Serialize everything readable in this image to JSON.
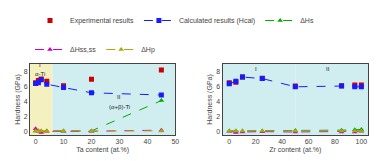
{
  "chart_data": [
    {
      "type": "line",
      "xlabel": "Ta content (at.%)",
      "ylabel": "Hardness (GPa)",
      "x": [
        0,
        1,
        2,
        4,
        10,
        20,
        45
      ],
      "xlim": [
        -2,
        50
      ],
      "ylim": [
        -0.5,
        9.0
      ],
      "xticks": [
        0,
        10,
        20,
        30,
        40,
        50
      ],
      "yticks": [
        0,
        2,
        4,
        6,
        8
      ],
      "grid": false,
      "legend": "top",
      "series": [
        {
          "name": "Experimental results",
          "type": "scatter",
          "color": "#cc0000",
          "marker": "square",
          "values": [
            6.5,
            6.8,
            7.0,
            6.7,
            6.1,
            6.95,
            8.2
          ]
        },
        {
          "name": "Calculated results (Hcal)",
          "type": "line",
          "color": "#1a1aff",
          "marker": "square",
          "line_style": "dashed",
          "values": [
            6.4,
            6.5,
            6.9,
            6.3,
            5.85,
            5.15,
            4.85
          ]
        },
        {
          "name": "ΔHs",
          "type": "line",
          "color": "#00aa00",
          "marker": "triangle-up",
          "line_style": "dashed",
          "values": [
            0.05,
            0.05,
            0.05,
            0.05,
            0.05,
            0.05,
            4.1
          ]
        },
        {
          "name": "ΔHss,ss",
          "type": "line",
          "color": "#cc00cc",
          "marker": "triangle-up",
          "line_style": "dashed",
          "values": [
            0.35,
            0.05,
            -0.15,
            0.0,
            0.0,
            0.0,
            0.15
          ]
        },
        {
          "name": "ΔHp",
          "type": "line",
          "color": "#aaaa00",
          "marker": "triangle-up",
          "line_style": "dashed",
          "values": [
            0.05,
            0.05,
            0.05,
            0.05,
            0.05,
            0.05,
            0.05
          ]
        }
      ],
      "regions": [
        {
          "x": [
            -2,
            6
          ],
          "color": "#f5f0c0"
        },
        {
          "x": [
            6,
            50
          ],
          "color": "#d0eef0"
        }
      ],
      "annotations": [
        {
          "text": "I",
          "x": 1.5,
          "y": 8.3
        },
        {
          "text": "α-Ti",
          "x": 1.5,
          "y": 7.65
        },
        {
          "text": "II",
          "x": 30,
          "y": 4.0
        },
        {
          "text": "(α+β)-Ti",
          "x": 30,
          "y": 3.3
        }
      ]
    },
    {
      "type": "line",
      "xlabel": "Zr content (at.%)",
      "ylabel": "Hardness (GPa)",
      "x": [
        0,
        5,
        10,
        25,
        50,
        85,
        95,
        100
      ],
      "xlim": [
        -5,
        105
      ],
      "ylim": [
        -0.5,
        9.0
      ],
      "xticks": [
        0,
        20,
        40,
        60,
        80,
        100
      ],
      "yticks": [
        0,
        2,
        4,
        6,
        8
      ],
      "grid": false,
      "legend": "top",
      "series": [
        {
          "name": "Experimental results",
          "type": "scatter",
          "color": "#cc0000",
          "marker": "square",
          "values": [
            6.5,
            6.55,
            7.25,
            7.1,
            6.05,
            6.1,
            6.2,
            6.2
          ]
        },
        {
          "name": "Calculated results (Hcal)",
          "type": "line",
          "color": "#1a1aff",
          "marker": "square",
          "line_style": "dashed",
          "values": [
            6.35,
            6.7,
            7.25,
            7.05,
            5.95,
            6.05,
            5.95,
            5.95
          ]
        },
        {
          "name": "ΔHs",
          "type": "line",
          "color": "#00aa00",
          "marker": "triangle-up",
          "line_style": "dashed",
          "values": [
            0.05,
            0.05,
            0.05,
            0.05,
            0.1,
            0.15,
            0.2,
            0.25
          ]
        },
        {
          "name": "ΔHss,ss",
          "type": "line",
          "color": "#cc00cc",
          "marker": "triangle-up",
          "line_style": "dashed",
          "values": [
            0.0,
            -0.15,
            -0.1,
            -0.05,
            -0.1,
            -0.1,
            -0.1,
            0.0
          ]
        },
        {
          "name": "ΔHp",
          "type": "line",
          "color": "#aaaa00",
          "marker": "triangle-up",
          "line_style": "dashed",
          "values": [
            0.05,
            0.05,
            0.05,
            0.05,
            0.05,
            0.05,
            0.05,
            0.05
          ]
        }
      ],
      "regions": [
        {
          "x": [
            -5,
            50
          ],
          "color": "#d0eef0"
        },
        {
          "x": [
            50,
            105
          ],
          "color": "#d0eef0"
        }
      ],
      "annotations": [
        {
          "text": "I",
          "x": 20,
          "y": 8.3
        },
        {
          "text": "II",
          "x": 75,
          "y": 8.3
        }
      ]
    }
  ]
}
